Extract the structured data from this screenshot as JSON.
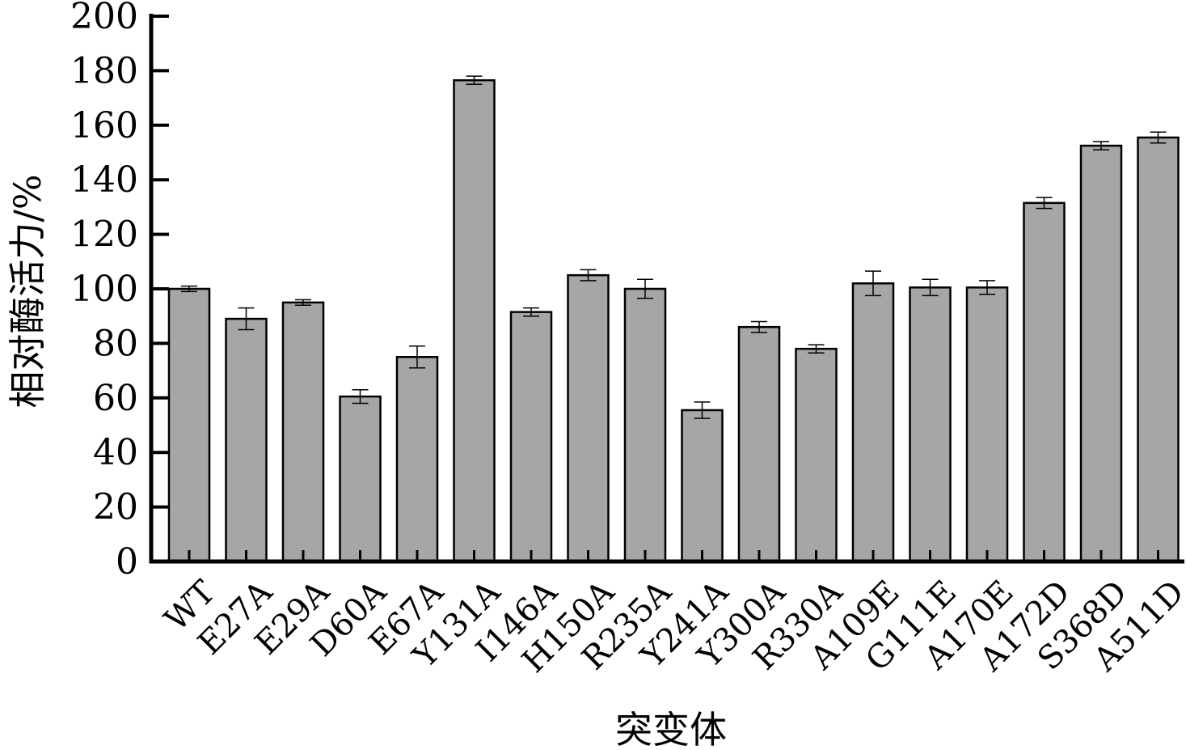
{
  "chart_data": {
    "type": "bar",
    "categories": [
      "WT",
      "E27A",
      "E29A",
      "D60A",
      "E67A",
      "Y131A",
      "I146A",
      "H150A",
      "R235A",
      "Y241A",
      "Y300A",
      "R330A",
      "A109E",
      "G111E",
      "A170E",
      "A172D",
      "S368D",
      "A511D"
    ],
    "values": [
      100,
      89,
      95,
      60.5,
      75,
      176.5,
      91.5,
      105,
      100,
      55.5,
      86,
      78,
      102,
      100.5,
      100.5,
      131.5,
      152.5,
      155.5
    ],
    "errors": [
      1,
      4,
      1,
      2.5,
      4,
      1.5,
      1.5,
      2,
      3.5,
      3,
      2,
      1.5,
      4.5,
      3,
      2.5,
      2,
      1.5,
      2
    ],
    "title": "",
    "xlabel": "突变体",
    "ylabel": "相对酶活力/%",
    "ylim": [
      0,
      200
    ],
    "yticks": [
      "0",
      "20",
      "40",
      "60",
      "80",
      "100",
      "120",
      "140",
      "160",
      "180",
      "200"
    ],
    "bar_color": "#a6a6a6",
    "grid": false,
    "legend": "none"
  }
}
